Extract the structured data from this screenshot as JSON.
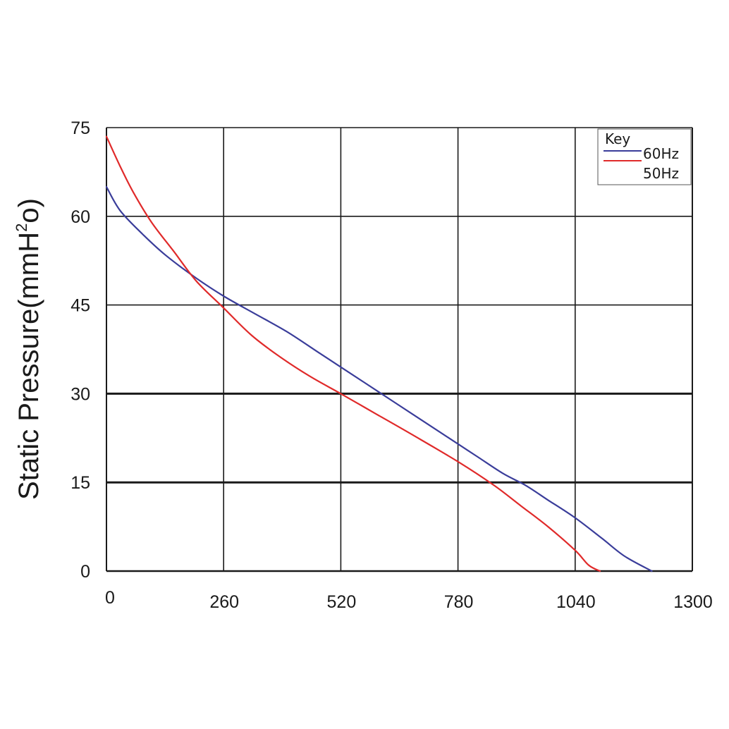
{
  "chart_data": {
    "type": "line",
    "title": "",
    "xlabel": "",
    "ylabel": "Static Pressure(mmH",
    "ylabel_sup": "2",
    "ylabel_tail": "o)",
    "xlim": [
      0,
      1300
    ],
    "ylim": [
      0,
      75
    ],
    "x_ticks": [
      0,
      260,
      520,
      780,
      1040,
      1300
    ],
    "x_tick_labels": [
      "0",
      "260",
      "520",
      "780",
      "1040",
      "1300"
    ],
    "y_ticks": [
      0,
      15,
      30,
      45,
      60,
      75
    ],
    "y_tick_labels": [
      "0",
      "15",
      "30",
      "45",
      "60",
      "75"
    ],
    "grid": true,
    "legend": {
      "title": "Key",
      "placement": "top-right"
    },
    "colors": {
      "60Hz": "#3a3d9a",
      "50Hz": "#e02a2a",
      "grid": "#1a1a1a"
    },
    "series": [
      {
        "name": "60Hz",
        "color": "#3a3d9a",
        "x": [
          0,
          30,
          80,
          130,
          200,
          260,
          330,
          400,
          470,
          520,
          600,
          680,
          760,
          820,
          880,
          930,
          980,
          1040,
          1100,
          1150,
          1210
        ],
        "y": [
          65,
          61,
          57,
          53.5,
          49.5,
          46.5,
          43.5,
          40.5,
          37,
          34.5,
          30.5,
          26.5,
          22.5,
          19.5,
          16.5,
          14.5,
          12,
          9,
          5.5,
          2.5,
          0
        ]
      },
      {
        "name": "50Hz",
        "color": "#e02a2a",
        "x": [
          0,
          30,
          60,
          100,
          150,
          200,
          260,
          320,
          380,
          450,
          520,
          600,
          680,
          780,
          860,
          920,
          980,
          1040,
          1070,
          1095
        ],
        "y": [
          73.5,
          68.5,
          64,
          59,
          54,
          49,
          44.5,
          40,
          36.5,
          33,
          30,
          26.5,
          23,
          18.5,
          14.5,
          11,
          7.5,
          3.5,
          1,
          0
        ]
      }
    ]
  }
}
